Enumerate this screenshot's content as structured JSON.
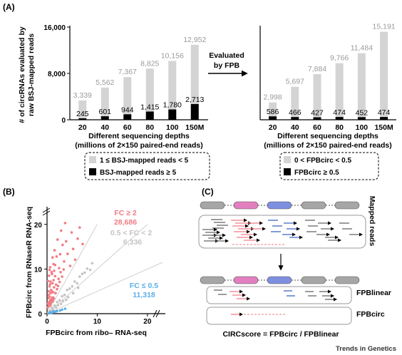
{
  "panels": {
    "a": "(A)",
    "b": "(B)",
    "c": "(C)"
  },
  "colors": {
    "light_bar": "#d4d4d4",
    "dark_bar": "#000000",
    "gray_value": "#9a9a9a",
    "pink": "#f07c84",
    "blue": "#5aaee8",
    "scatter_gray": "#c4c4c4",
    "exon_gray": "#a6a6a6",
    "exon_pink": "#e27fbf",
    "exon_blue": "#7f8fe0",
    "read_gray": "#666666",
    "read_blue": "#3f66c2"
  },
  "panel_a": {
    "arrow_label": [
      "Evaluated",
      "by FPB"
    ],
    "left_ylabel": [
      "# of circRNAs evaluated by",
      "raw BSJ-mapped reads"
    ],
    "xlabel": [
      "Different sequencing depths",
      "(millions of 2×150 paired-end reads)"
    ],
    "left_legend": [
      "1 ≤ BSJ-mapped reads < 5",
      "BSJ-mapped reads ≥ 5"
    ],
    "right_legend": [
      "0 < FPBcirc < 0.5",
      "FPBcirc ≥ 0.5"
    ]
  },
  "chart_data": [
    {
      "type": "bar",
      "panel": "A-left",
      "categories": [
        "20",
        "40",
        "60",
        "80",
        "100",
        "150M"
      ],
      "series": [
        {
          "name": "1 ≤ BSJ-mapped reads < 5",
          "values": [
            3339,
            5562,
            7367,
            8825,
            10156,
            12952
          ]
        },
        {
          "name": "BSJ-mapped reads ≥ 5",
          "values": [
            245,
            601,
            944,
            1415,
            1780,
            2713
          ]
        }
      ],
      "value_labels": {
        "light": [
          "3,339",
          "5,562",
          "7,367",
          "8,825",
          "10,156",
          "12,952"
        ],
        "dark": [
          "245",
          "601",
          "944",
          "1,415",
          "1,780",
          "2,713"
        ]
      },
      "yticks": [
        "0",
        "8,000",
        "16,000"
      ],
      "ytick_values": [
        0,
        8000,
        16000
      ],
      "ylim": [
        0,
        16000
      ]
    },
    {
      "type": "bar",
      "panel": "A-right",
      "categories": [
        "20",
        "40",
        "60",
        "80",
        "100",
        "150M"
      ],
      "series": [
        {
          "name": "0 < FPBcirc < 0.5",
          "values": [
            2998,
            5697,
            7884,
            9766,
            11484,
            15191
          ]
        },
        {
          "name": "FPBcirc ≥ 0.5",
          "values": [
            586,
            466,
            427,
            474,
            452,
            474
          ]
        }
      ],
      "value_labels": {
        "light": [
          "2,998",
          "5,697",
          "7,884",
          "9,766",
          "11,484",
          "15,191"
        ],
        "dark": [
          "586",
          "466",
          "427",
          "474",
          "452",
          "474"
        ]
      },
      "ylim": [
        0,
        16000
      ]
    },
    {
      "type": "scatter",
      "panel": "B",
      "xlabel": "FPBcirc from ribo– RNA-seq",
      "ylabel": "FPBcirc from RNaseR RNA-seq",
      "xticks": [
        "0",
        "10",
        "20"
      ],
      "yticks": [
        "0",
        "10",
        "20"
      ],
      "xtick_values": [
        0,
        10,
        20
      ],
      "ytick_values": [
        0,
        10,
        20
      ],
      "xlim": [
        0,
        23
      ],
      "ylim": [
        0,
        23
      ],
      "reference_lines": [
        {
          "slope": 2
        },
        {
          "slope": 1
        },
        {
          "slope": 0.5
        }
      ],
      "groups": [
        {
          "name": "FC ≥ 2",
          "count": "28,686",
          "color": "#f07c84"
        },
        {
          "name": "0.5 < FC < 2",
          "count": "6,336",
          "color": "#c4c4c4"
        },
        {
          "name": "FC ≤ 0.5",
          "count": "11,318",
          "color": "#5aaee8"
        }
      ],
      "points": {
        "pink": [
          [
            0.3,
            4.2
          ],
          [
            0.5,
            6.1
          ],
          [
            0.4,
            8.5
          ],
          [
            0.7,
            7.2
          ],
          [
            0.6,
            10.4
          ],
          [
            0.9,
            9.3
          ],
          [
            1.1,
            12.6
          ],
          [
            0.8,
            5.3
          ],
          [
            1.3,
            11.1
          ],
          [
            1.5,
            14.2
          ],
          [
            1.2,
            3.6
          ],
          [
            1.6,
            8.4
          ],
          [
            1.9,
            12.8
          ],
          [
            2.1,
            16.6
          ],
          [
            2.4,
            10.2
          ],
          [
            1.8,
            6.5
          ],
          [
            2.6,
            13.3
          ],
          [
            2.8,
            18.6
          ],
          [
            3.1,
            15.4
          ],
          [
            2.3,
            7.8
          ],
          [
            3.4,
            11.7
          ],
          [
            3.6,
            20.3
          ],
          [
            3.8,
            16.2
          ],
          [
            4.1,
            13.4
          ],
          [
            4.6,
            10.7
          ],
          [
            4.9,
            18.2
          ],
          [
            5.2,
            14.5
          ],
          [
            5.6,
            12.1
          ],
          [
            6.1,
            16.8
          ],
          [
            6.5,
            19.3
          ],
          [
            7.1,
            15.6
          ],
          [
            0.2,
            2.3
          ],
          [
            0.4,
            1.9
          ],
          [
            0.6,
            2.9
          ],
          [
            0.8,
            3.1
          ],
          [
            1.0,
            2.7
          ],
          [
            1.2,
            4.8
          ],
          [
            1.4,
            5.9
          ],
          [
            0.3,
            3.5
          ],
          [
            0.5,
            3.8
          ],
          [
            0.7,
            4.6
          ],
          [
            0.9,
            5.1
          ],
          [
            1.1,
            6.8
          ],
          [
            1.3,
            7.5
          ],
          [
            1.7,
            4.6
          ],
          [
            2.0,
            5.5
          ],
          [
            2.2,
            6.2
          ],
          [
            2.5,
            7.1
          ],
          [
            0.15,
            1.4
          ],
          [
            0.25,
            2.1
          ],
          [
            0.35,
            1.7
          ],
          [
            0.45,
            2.6
          ],
          [
            0.55,
            2.2
          ],
          [
            0.65,
            1.9
          ],
          [
            0.75,
            2.4
          ],
          [
            0.85,
            2.8
          ],
          [
            0.95,
            3.3
          ],
          [
            1.05,
            3.6
          ],
          [
            1.15,
            2.9
          ],
          [
            1.35,
            3.4
          ],
          [
            0.3,
            5.0
          ],
          [
            0.6,
            6.6
          ],
          [
            1.0,
            8.9
          ],
          [
            1.4,
            9.6
          ],
          [
            2.7,
            9.3
          ],
          [
            3.0,
            8.3
          ],
          [
            3.3,
            9.9
          ],
          [
            0.5,
            9.8
          ],
          [
            0.2,
            7.3
          ],
          [
            1.6,
            10.9
          ]
        ],
        "gray": [
          [
            0.5,
            0.7
          ],
          [
            1.0,
            1.3
          ],
          [
            1.5,
            1.8
          ],
          [
            2.0,
            2.6
          ],
          [
            2.5,
            3.0
          ],
          [
            3.0,
            3.9
          ],
          [
            3.5,
            4.2
          ],
          [
            4.0,
            5.3
          ],
          [
            4.5,
            5.6
          ],
          [
            5.0,
            6.1
          ],
          [
            5.5,
            7.2
          ],
          [
            6.0,
            6.8
          ],
          [
            6.5,
            8.3
          ],
          [
            7.0,
            8.9
          ],
          [
            7.5,
            9.2
          ],
          [
            8.0,
            10.1
          ],
          [
            1.2,
            0.9
          ],
          [
            2.2,
            1.9
          ],
          [
            3.2,
            2.8
          ],
          [
            4.2,
            3.7
          ],
          [
            5.2,
            4.6
          ],
          [
            6.2,
            5.8
          ],
          [
            0.8,
            0.6
          ],
          [
            1.8,
            1.4
          ],
          [
            2.8,
            2.2
          ],
          [
            3.8,
            3.1
          ],
          [
            9.0,
            11.3
          ],
          [
            8.6,
            9.8
          ]
        ],
        "blue": [
          [
            0.6,
            0.1
          ],
          [
            1.1,
            0.3
          ],
          [
            1.5,
            0.4
          ],
          [
            2.0,
            0.6
          ],
          [
            2.6,
            0.7
          ],
          [
            3.0,
            0.9
          ],
          [
            3.6,
            1.1
          ],
          [
            0.9,
            0.2
          ],
          [
            1.3,
            0.5
          ],
          [
            0.5,
            0.2
          ],
          [
            0.7,
            0.3
          ],
          [
            1.8,
            0.5
          ]
        ]
      }
    }
  ],
  "panel_c": {
    "mapped_reads": "Mapped reads",
    "fpblinear": "FPBlinear",
    "fpbcirc": "FPBcirc",
    "formula": "CIRCscore = FPBcirc / FPBlinear"
  },
  "footer": "Trends in Genetics"
}
